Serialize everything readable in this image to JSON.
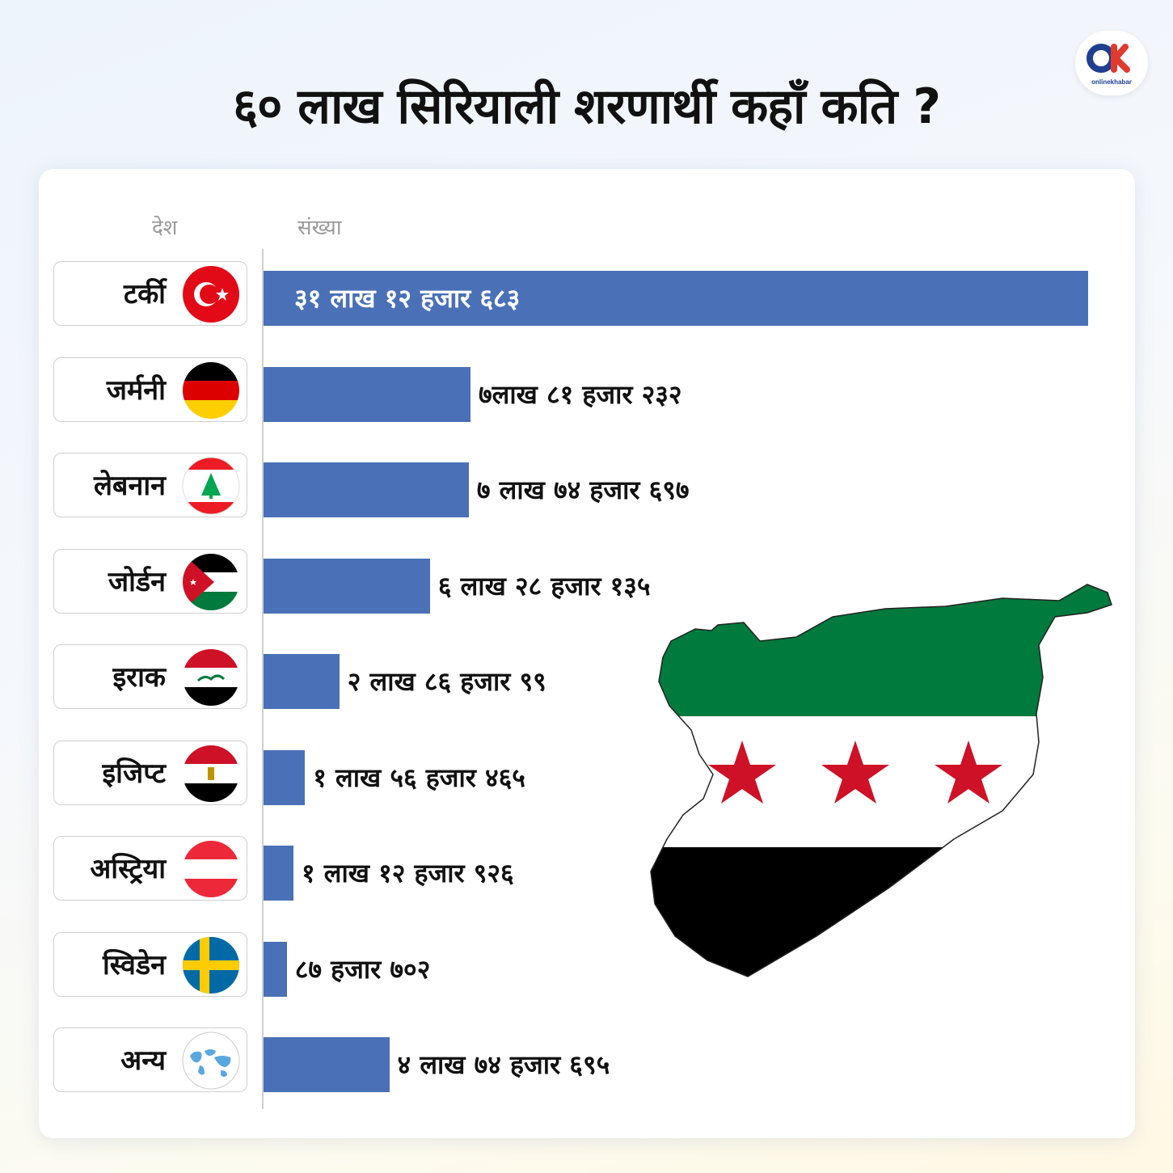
{
  "title": "६० लाख सिरियाली शरणार्थी कहाँ कति ?",
  "brand": {
    "logo_text": "onlinekhabar",
    "primary_color": "#1f3f8f",
    "accent_color": "#e03a2f"
  },
  "columns": {
    "country": "देश",
    "count": "संख्या"
  },
  "colors": {
    "bar": "#4a71b7"
  },
  "chart_data": {
    "type": "bar",
    "orientation": "horizontal",
    "title": "६० लाख सिरियाली शरणार्थी कहाँ कति ?",
    "xlabel": "संख्या",
    "ylabel": "देश",
    "categories": [
      "टर्की",
      "जर्मनी",
      "लेबनान",
      "जोर्डन",
      "इराक",
      "इजिप्ट",
      "अस्ट्रिया",
      "स्विडेन",
      "अन्य"
    ],
    "values": [
      3112683,
      781232,
      774697,
      628135,
      286099,
      156465,
      112926,
      87702,
      474695
    ],
    "value_labels": [
      "३१ लाख १२ हजार ६८३",
      "७लाख ८१ हजार २३२",
      "७ लाख ७४ हजार ६९७",
      "६ लाख २८ हजार १३५",
      "२ लाख ८६ हजार ९९",
      "१ लाख ५६ हजार ४६५",
      "१ लाख १२ हजार ९२६",
      "८७ हजार ७०२",
      "४ लाख ७४ हजार ६९५"
    ],
    "flag_icons": [
      "turkey-flag-icon",
      "germany-flag-icon",
      "lebanon-flag-icon",
      "jordan-flag-icon",
      "iraq-flag-icon",
      "egypt-flag-icon",
      "austria-flag-icon",
      "sweden-flag-icon",
      "world-map-icon"
    ],
    "grid": false,
    "legend": "none"
  },
  "decoration": {
    "map": "syria-map-icon",
    "map_colors": [
      "#007a3d",
      "#ffffff",
      "#000000",
      "#ce1126"
    ]
  }
}
